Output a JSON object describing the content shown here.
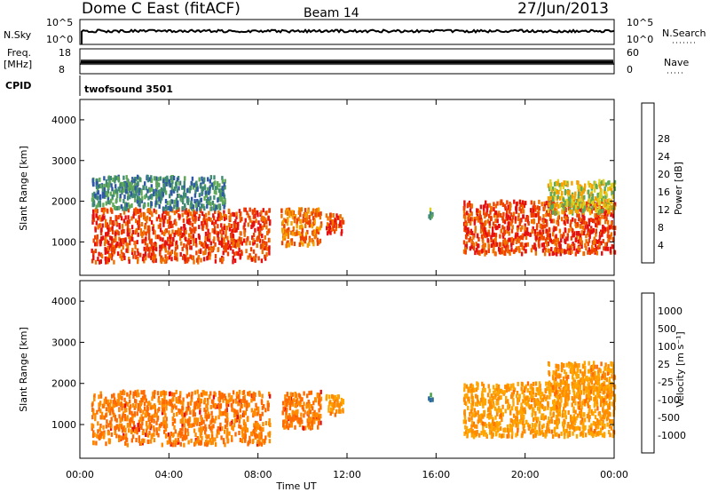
{
  "header": {
    "station": "Dome C East (fitACF)",
    "beam": "Beam 14",
    "date": "27/Jun/2013"
  },
  "ops": {
    "nsky_label": "N.Sky",
    "nsky_top": "10^5",
    "nsky_bottom": "10^0",
    "nsearch_label": "N.Search",
    "nsearch_top": "10^5",
    "nsearch_bottom": "10^0",
    "freq_label": "Freq.",
    "freq_unit": "[MHz]",
    "freq_top": "18",
    "freq_bottom": "8",
    "nave_label": "Nave",
    "nave_top": "60",
    "nave_bottom": "0",
    "cpid_label": "CPID",
    "cpid_value": "twofsound 3501"
  },
  "colors": {
    "power": [
      "#1f2fe0",
      "#2f58a6",
      "#3f8a75",
      "#5fa858",
      "#ddd020",
      "#f5a000",
      "#f07000",
      "#ee4000",
      "#e51010"
    ],
    "velocity": [
      "#e51010",
      "#ff6a00",
      "#ff8c00",
      "#ffa500",
      "#c8c8c8",
      "#7fd040",
      "#3fa040",
      "#2f6aa0",
      "#1f2fd0"
    ]
  },
  "chart_data": [
    {
      "type": "heatmap",
      "name": "power",
      "xlabel": "Time UT",
      "ylabel": "Slant Range [km]",
      "xlim": [
        0,
        24
      ],
      "ylim": [
        180,
        4500
      ],
      "x_ticks": [
        "00:00",
        "04:00",
        "08:00",
        "12:00",
        "16:00",
        "20:00",
        "00:00"
      ],
      "y_ticks": [
        1000,
        2000,
        3000,
        4000
      ],
      "colorbar_label": "Power [dB]",
      "colorbar_ticks": [
        "4",
        "8",
        "12",
        "16",
        "20",
        "24",
        "28"
      ],
      "echo_regions": [
        {
          "t_start": 0.5,
          "t_end": 8.5,
          "range_min": 500,
          "range_max": 1800,
          "typical_power_db": 26
        },
        {
          "t_start": 0.5,
          "t_end": 6.5,
          "range_min": 1800,
          "range_max": 2600,
          "typical_power_db": 8
        },
        {
          "t_start": 9.0,
          "t_end": 10.8,
          "range_min": 900,
          "range_max": 1800,
          "typical_power_db": 22
        },
        {
          "t_start": 11.0,
          "t_end": 11.8,
          "range_min": 1200,
          "range_max": 1700,
          "typical_power_db": 24
        },
        {
          "t_start": 15.6,
          "t_end": 15.8,
          "range_min": 1550,
          "range_max": 1800,
          "typical_power_db": 10
        },
        {
          "t_start": 17.2,
          "t_end": 24.0,
          "range_min": 700,
          "range_max": 2000,
          "typical_power_db": 26
        },
        {
          "t_start": 21.0,
          "t_end": 24.0,
          "range_min": 1700,
          "range_max": 2500,
          "typical_power_db": 14
        }
      ]
    },
    {
      "type": "heatmap",
      "name": "velocity",
      "xlabel": "Time UT",
      "ylabel": "Slant Range [km]",
      "xlim": [
        0,
        24
      ],
      "ylim": [
        180,
        4500
      ],
      "x_ticks": [
        "00:00",
        "04:00",
        "08:00",
        "12:00",
        "16:00",
        "20:00",
        "00:00"
      ],
      "y_ticks": [
        1000,
        2000,
        3000,
        4000
      ],
      "colorbar_label": "Velocity [m s⁻¹]",
      "colorbar_ticks": [
        "1000",
        "500",
        "100",
        "25",
        "-25",
        "-100",
        "-500",
        "-1000"
      ],
      "echo_regions": [
        {
          "t_start": 0.5,
          "t_end": 8.5,
          "range_min": 500,
          "range_max": 1800,
          "typical_velocity": -150
        },
        {
          "t_start": 9.0,
          "t_end": 10.8,
          "range_min": 900,
          "range_max": 1800,
          "typical_velocity": -120
        },
        {
          "t_start": 11.0,
          "t_end": 11.8,
          "range_min": 1200,
          "range_max": 1700,
          "typical_velocity": -100
        },
        {
          "t_start": 15.6,
          "t_end": 15.8,
          "range_min": 1550,
          "range_max": 1800,
          "typical_velocity": 200
        },
        {
          "t_start": 17.2,
          "t_end": 24.0,
          "range_min": 700,
          "range_max": 2000,
          "typical_velocity": -80
        },
        {
          "t_start": 21.0,
          "t_end": 24.0,
          "range_min": 1700,
          "range_max": 2500,
          "typical_velocity": -60
        }
      ]
    }
  ]
}
